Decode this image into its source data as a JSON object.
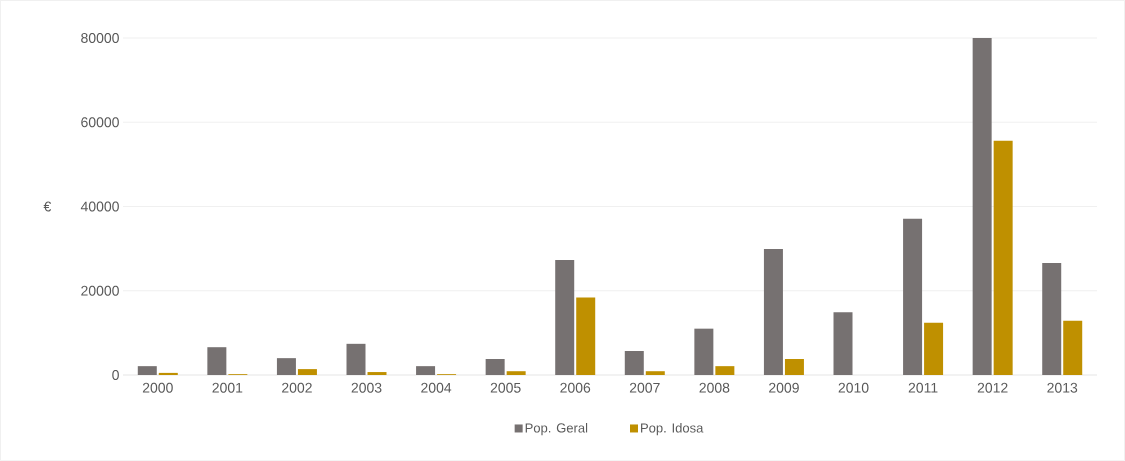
{
  "chart_data": {
    "type": "bar",
    "ylabel": "€",
    "categories": [
      "2000",
      "2001",
      "2002",
      "2003",
      "2004",
      "2005",
      "2006",
      "2007",
      "2008",
      "2009",
      "2010",
      "2011",
      "2012",
      "2013"
    ],
    "series": [
      {
        "name": "Pop. Geral",
        "color": "#767171",
        "values": [
          2100,
          6600,
          4000,
          7400,
          2100,
          3800,
          27300,
          5700,
          11000,
          29900,
          14900,
          37100,
          80000,
          26600
        ]
      },
      {
        "name": "Pop. Idosa",
        "color": "#bf9000",
        "values": [
          500,
          200,
          1400,
          700,
          200,
          900,
          18400,
          900,
          2100,
          3800,
          0,
          12400,
          55600,
          12900
        ]
      }
    ],
    "ylim": [
      0,
      80000
    ],
    "yticks": [
      0,
      20000,
      40000,
      60000,
      80000
    ],
    "grid": "y",
    "legend": "bottom"
  }
}
